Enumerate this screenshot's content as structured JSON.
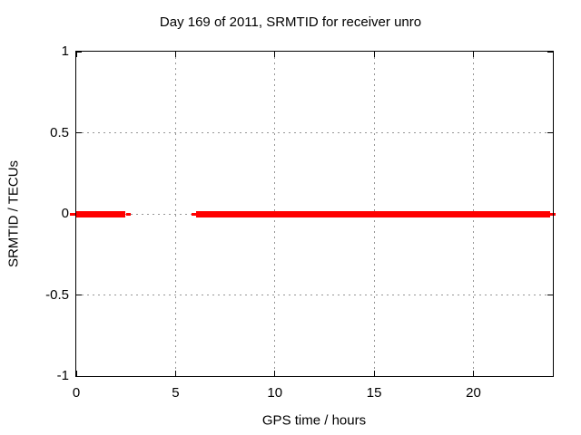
{
  "chart_data": {
    "type": "line",
    "title": "Day 169 of 2011, SRMTID for receiver unro",
    "xlabel": "GPS time / hours",
    "ylabel": "SRMTID / TECUs",
    "xlim": [
      0,
      24
    ],
    "ylim": [
      -1,
      1
    ],
    "xticks": [
      {
        "value": 0,
        "label": "0"
      },
      {
        "value": 5,
        "label": "5"
      },
      {
        "value": 10,
        "label": "10"
      },
      {
        "value": 15,
        "label": "15"
      },
      {
        "value": 20,
        "label": "20"
      }
    ],
    "yticks": [
      {
        "value": -1,
        "label": "-1"
      },
      {
        "value": -0.5,
        "label": "-0.5"
      },
      {
        "value": 0,
        "label": "0"
      },
      {
        "value": 0.5,
        "label": "0.5"
      },
      {
        "value": 1,
        "label": "1"
      }
    ],
    "grid": true,
    "grid_style": "dashed",
    "legend_position": "none",
    "colors": {
      "series": "#ff0000",
      "grid": "#969696",
      "border": "#000000",
      "text": "#000000",
      "background": "#ffffff"
    },
    "series": [
      {
        "name": "SRMTID",
        "color": "#ff0000",
        "style": "thick horizontal line at constant value",
        "y_value": 0,
        "segments_hours": [
          [
            0.0,
            2.45
          ],
          [
            6.05,
            23.85
          ]
        ],
        "point_dashes_hours": [
          [
            -0.3,
            0.02
          ],
          [
            2.53,
            2.72
          ],
          [
            5.82,
            6.05
          ],
          [
            23.81,
            24.13
          ]
        ]
      }
    ]
  }
}
